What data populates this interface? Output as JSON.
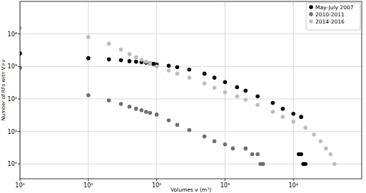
{
  "chart_data": {
    "type": "scatter",
    "x_label": "Volumes v (m³)",
    "y_label": "Number of RFs with V>v",
    "log": true,
    "grid": true,
    "legend": "upper right",
    "marker": "circle",
    "xlim": [
      1,
      100000
    ],
    "ylim": [
      0.35,
      100000
    ],
    "xticks": [
      {
        "value": 1,
        "label": "10⁰"
      },
      {
        "value": 10,
        "label": "10¹"
      },
      {
        "value": 100,
        "label": "10²"
      },
      {
        "value": 1000,
        "label": "10³"
      },
      {
        "value": 10000,
        "label": "10⁴"
      }
    ],
    "yticks": [
      {
        "value": 1,
        "label": "10⁰"
      },
      {
        "value": 10,
        "label": "10¹"
      },
      {
        "value": 100,
        "label": "10²"
      },
      {
        "value": 1000,
        "label": "10³"
      },
      {
        "value": 10000,
        "label": "10⁴"
      }
    ],
    "series": [
      {
        "name": "May-July 2007",
        "color": "#000000",
        "x": [
          1,
          10,
          20,
          30,
          40,
          50,
          60,
          70,
          80,
          90,
          100,
          150,
          200,
          300,
          500,
          700,
          1000,
          1500,
          2000,
          3000,
          5000,
          7000,
          10000,
          13000,
          12000,
          13000,
          14000,
          15000
        ],
        "values": [
          2500,
          1800,
          1650,
          1550,
          1450,
          1400,
          1350,
          1300,
          1250,
          1200,
          1150,
          1050,
          950,
          800,
          600,
          450,
          330,
          230,
          180,
          120,
          75,
          50,
          35,
          28,
          2,
          2,
          1,
          1
        ]
      },
      {
        "name": "2010-2011",
        "color": "#6e6e6e",
        "x": [
          1,
          10,
          20,
          30,
          40,
          50,
          60,
          70,
          80,
          100,
          150,
          200,
          300,
          500,
          700,
          1000,
          1300,
          2000,
          2500,
          3000,
          3300,
          3600
        ],
        "values": [
          900,
          130,
          90,
          70,
          58,
          50,
          45,
          40,
          37,
          33,
          22,
          16,
          11,
          7,
          5,
          4,
          3,
          3,
          2,
          2,
          1,
          1
        ]
      },
      {
        "name": "2014-2016",
        "color": "#bdbdbd",
        "x": [
          1,
          10,
          20,
          30,
          40,
          50,
          60,
          70,
          80,
          100,
          150,
          200,
          300,
          500,
          700,
          1000,
          1500,
          2000,
          3000,
          5000,
          7000,
          10000,
          15000,
          20000,
          25000,
          30000,
          35000,
          40000
        ],
        "values": [
          15000,
          8000,
          5000,
          3300,
          2400,
          1900,
          1600,
          1400,
          1250,
          1000,
          750,
          600,
          450,
          300,
          220,
          160,
          120,
          95,
          65,
          40,
          28,
          20,
          13,
          8,
          5,
          3,
          2,
          1
        ]
      }
    ]
  }
}
